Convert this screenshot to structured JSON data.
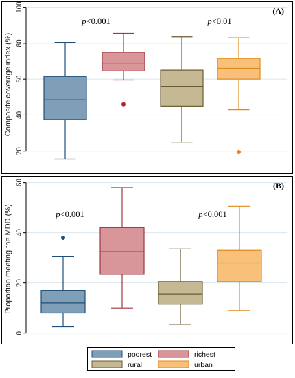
{
  "chart_data": [
    {
      "type": "box",
      "panel_label": "(A)",
      "ylabel": "Composite coverage index (%)",
      "yticks": [
        20,
        40,
        60,
        80,
        100
      ],
      "ylim": [
        13,
        101
      ],
      "grid": true,
      "annotations": [
        "p<0.001",
        "p<0.01"
      ],
      "series": [
        {
          "name": "poorest",
          "min": 15.5,
          "q1": 37.5,
          "median": 48.5,
          "q3": 61.5,
          "max": 80.5,
          "outliers": []
        },
        {
          "name": "richest",
          "min": 59.5,
          "q1": 64.5,
          "median": 69,
          "q3": 75,
          "max": 85.5,
          "outliers": [
            46
          ]
        },
        {
          "name": "rural",
          "min": 25,
          "q1": 45,
          "median": 56,
          "q3": 65,
          "max": 83.5,
          "outliers": []
        },
        {
          "name": "urban",
          "min": 43,
          "q1": 60,
          "median": 66,
          "q3": 71.5,
          "max": 83,
          "outliers": [
            19.5
          ]
        }
      ]
    },
    {
      "type": "box",
      "panel_label": "(B)",
      "ylabel": "Proportion meeting the MDD (%)",
      "yticks": [
        0,
        20,
        40,
        60
      ],
      "ylim": [
        -2,
        61
      ],
      "grid": true,
      "annotations": [
        "p<0.001",
        "p<0.001"
      ],
      "series": [
        {
          "name": "poorest",
          "min": 2.5,
          "q1": 8,
          "median": 12,
          "q3": 17,
          "max": 30.5,
          "outliers": [
            38
          ]
        },
        {
          "name": "richest",
          "min": 10,
          "q1": 23.5,
          "median": 32.5,
          "q3": 42,
          "max": 58,
          "outliers": []
        },
        {
          "name": "rural",
          "min": 3.5,
          "q1": 11.5,
          "median": 15.5,
          "q3": 20.5,
          "max": 33.5,
          "outliers": []
        },
        {
          "name": "urban",
          "min": 9,
          "q1": 20.5,
          "median": 28,
          "q3": 33,
          "max": 50.5,
          "outliers": []
        }
      ]
    }
  ],
  "legend": {
    "items": [
      {
        "label": "poorest",
        "fill": "#7f9fb9",
        "stroke": "#1f4e79"
      },
      {
        "label": "richest",
        "fill": "#d9969a",
        "stroke": "#a0383f"
      },
      {
        "label": "rural",
        "fill": "#c5b994",
        "stroke": "#6b5a33"
      },
      {
        "label": "urban",
        "fill": "#f9c07a",
        "stroke": "#e08a1e"
      }
    ]
  },
  "colors": {
    "poorest": {
      "fill": "#7f9fb9",
      "stroke": "#1f4e79"
    },
    "richest": {
      "fill": "#d9969a",
      "stroke": "#a0383f"
    },
    "rural": {
      "fill": "#c5b994",
      "stroke": "#6b5a33"
    },
    "urban": {
      "fill": "#f9c07a",
      "stroke": "#e08a1e"
    },
    "outlier_poorest": "#1f4e79",
    "outlier_richest": "#b5222d",
    "outlier_urban": "#f07f1a",
    "grid": "#d9e6ee"
  }
}
